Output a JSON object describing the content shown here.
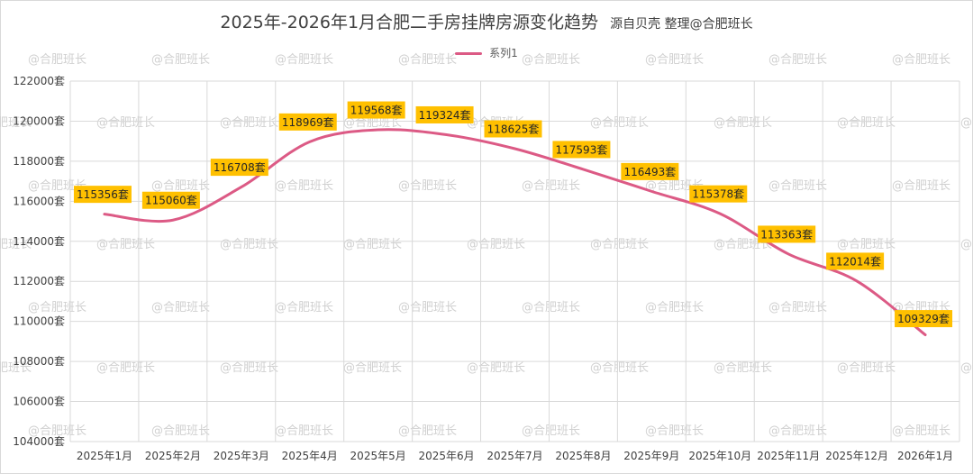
{
  "title": "2025年-2026年1月合肥二手房挂牌房源变化趋势",
  "subtitle": "源自贝壳 整理@合肥班长",
  "watermark": "@合肥班长",
  "chart_data": {
    "type": "line",
    "categories": [
      "2025年1月",
      "2025年2月",
      "2025年3月",
      "2025年4月",
      "2025年5月",
      "2025年6月",
      "2025年7月",
      "2025年8月",
      "2025年9月",
      "2025年10月",
      "2025年11月",
      "2025年12月",
      "2026年1月"
    ],
    "series": [
      {
        "name": "系列1",
        "values": [
          115356,
          115060,
          116708,
          118969,
          119568,
          119324,
          118625,
          117593,
          116493,
          115378,
          113363,
          112014,
          109329
        ],
        "data_labels": [
          "115356套",
          "115060套",
          "116708套",
          "118969套",
          "119568套",
          "119324套",
          "118625套",
          "117593套",
          "116493套",
          "115378套",
          "113363套",
          "112014套",
          "109329套"
        ]
      }
    ],
    "ylim": [
      104000,
      122000
    ],
    "yticks": [
      104000,
      106000,
      108000,
      110000,
      112000,
      114000,
      116000,
      118000,
      120000,
      122000
    ],
    "ytick_labels": [
      "104000套",
      "106000套",
      "108000套",
      "110000套",
      "112000套",
      "114000套",
      "116000套",
      "118000套",
      "120000套",
      "122000套"
    ],
    "grid": true,
    "legend_position": "top-center",
    "line_color": "#dc5a85",
    "label_bg_color": "#ffc000",
    "smooth": true
  }
}
